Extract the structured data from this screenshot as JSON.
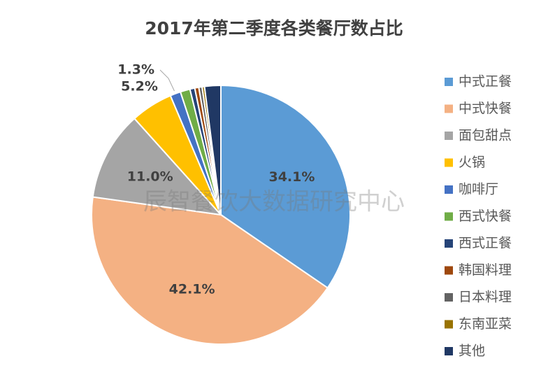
{
  "chart_data": {
    "type": "pie",
    "title": "2017年第二季度各类餐厅数占比",
    "watermark": "辰智餐饮大数据研究中心",
    "categories": [
      "中式正餐",
      "中式快餐",
      "面包甜点",
      "火锅",
      "咖啡厅",
      "西式快餐",
      "西式正餐",
      "韩国料理",
      "日本料理",
      "东南亚菜",
      "其他"
    ],
    "values": [
      34.1,
      42.1,
      11.0,
      5.2,
      1.3,
      1.2,
      0.6,
      0.5,
      0.4,
      0.3,
      2.0
    ],
    "value_labels": [
      "34.1%",
      "42.1%",
      "11.0%",
      "5.2%",
      "1.3%",
      null,
      null,
      null,
      null,
      null,
      null
    ],
    "colors": [
      "#5b9bd5",
      "#f4b183",
      "#a5a5a5",
      "#ffc000",
      "#4472c4",
      "#70ad47",
      "#264478",
      "#9e480e",
      "#636363",
      "#997300",
      "#203864"
    ],
    "legend": "right"
  }
}
